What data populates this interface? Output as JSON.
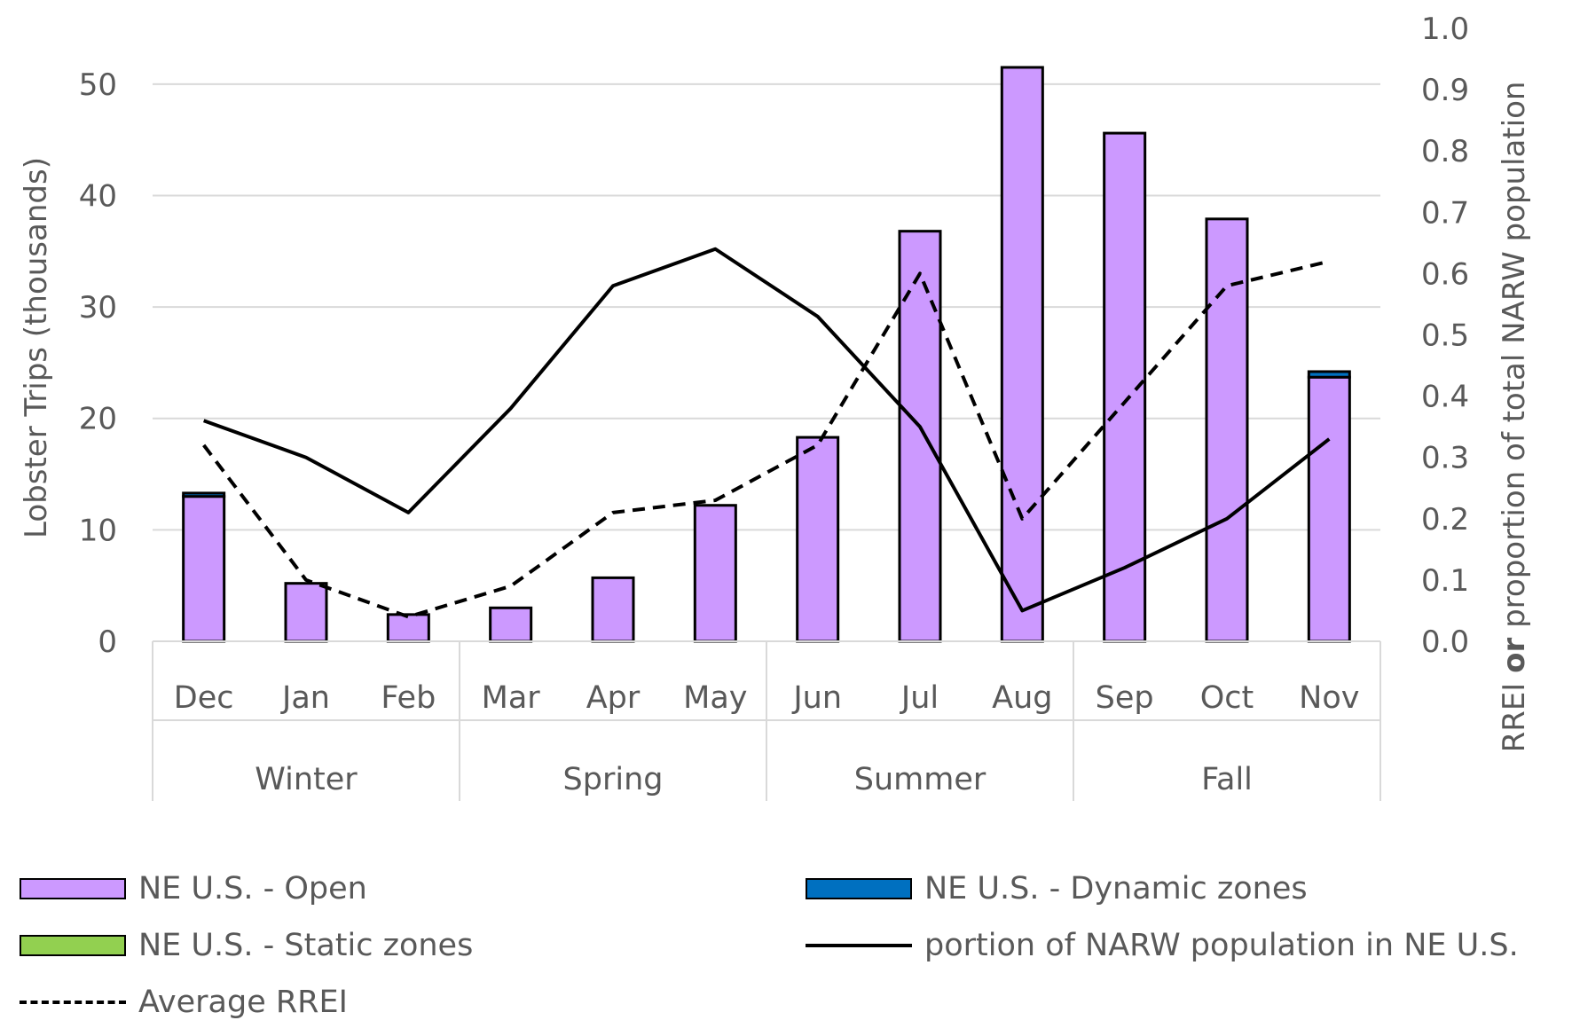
{
  "chart_data": {
    "type": "bar",
    "categories": [
      "Dec",
      "Jan",
      "Feb",
      "Mar",
      "Apr",
      "May",
      "Jun",
      "Jul",
      "Aug",
      "Sep",
      "Oct",
      "Nov"
    ],
    "seasons": [
      {
        "name": "Winter",
        "months": [
          "Dec",
          "Jan",
          "Feb"
        ]
      },
      {
        "name": "Spring",
        "months": [
          "Mar",
          "Apr",
          "May"
        ]
      },
      {
        "name": "Summer",
        "months": [
          "Jun",
          "Jul",
          "Aug"
        ]
      },
      {
        "name": "Fall",
        "months": [
          "Sep",
          "Oct",
          "Nov"
        ]
      }
    ],
    "ylabel": "Lobster Trips (thousands)",
    "ylabel2_parts": [
      "RREI ",
      "or",
      " proportion of total NARW population"
    ],
    "ylim": [
      0,
      55
    ],
    "yticks": [
      0,
      10,
      20,
      30,
      40,
      50
    ],
    "y2lim": [
      0,
      1.0
    ],
    "y2ticks": [
      "0.0",
      "0.1",
      "0.2",
      "0.3",
      "0.4",
      "0.5",
      "0.6",
      "0.7",
      "0.8",
      "0.9",
      "1.0"
    ],
    "grid": true,
    "series": [
      {
        "name": "NE U.S. - Open",
        "kind": "bar",
        "axis": "left",
        "color": "#cc99ff",
        "values": [
          13.0,
          5.2,
          2.4,
          3.0,
          5.7,
          12.2,
          18.3,
          36.8,
          51.5,
          45.6,
          37.9,
          23.7
        ]
      },
      {
        "name": "NE U.S. - Dynamic zones",
        "kind": "bar",
        "axis": "left",
        "color": "#0070c0",
        "values": [
          0.3,
          0,
          0,
          0,
          0,
          0,
          0,
          0,
          0,
          0,
          0,
          0.5
        ]
      },
      {
        "name": "NE U.S. - Static zones",
        "kind": "bar",
        "axis": "left",
        "color": "#92d050",
        "values": [
          0,
          0,
          0,
          0,
          0,
          0,
          0,
          0,
          0,
          0,
          0,
          0
        ]
      },
      {
        "name": "portion of NARW population in NE U.S.",
        "kind": "line",
        "axis": "right",
        "style": "solid",
        "color": "#000000",
        "values": [
          0.36,
          0.3,
          0.21,
          0.38,
          0.58,
          0.64,
          0.53,
          0.35,
          0.05,
          0.12,
          0.2,
          0.33
        ]
      },
      {
        "name": "Average RREI",
        "kind": "line",
        "axis": "right",
        "style": "dashed",
        "color": "#000000",
        "values": [
          0.32,
          0.1,
          0.04,
          0.09,
          0.21,
          0.23,
          0.32,
          0.6,
          0.2,
          0.39,
          0.58,
          0.62
        ]
      }
    ],
    "legend": [
      {
        "label": "NE U.S. - Open",
        "kind": "box",
        "color": "#cc99ff"
      },
      {
        "label": "NE U.S. - Dynamic zones",
        "kind": "box",
        "color": "#0070c0"
      },
      {
        "label": "NE U.S. - Static zones",
        "kind": "box",
        "color": "#92d050"
      },
      {
        "label": "portion of NARW population in NE U.S.",
        "kind": "line",
        "style": "solid"
      },
      {
        "label": "Average RREI",
        "kind": "line",
        "style": "dashed"
      }
    ]
  }
}
